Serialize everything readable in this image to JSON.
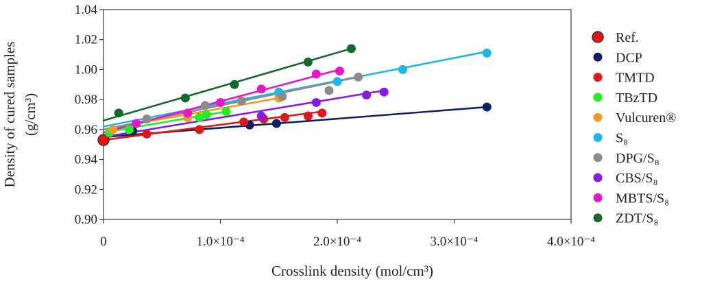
{
  "chart_data": {
    "type": "scatter",
    "title": "",
    "xlabel": "Crosslink density (mol/cm³)",
    "ylabel_line1": "Density of cured samples",
    "ylabel_line2": "(g/cm³)",
    "xlim": [
      0,
      0.0004
    ],
    "ylim": [
      0.9,
      1.04
    ],
    "x_ticks": [
      0,
      0.0001,
      0.0002,
      0.0003,
      0.0004
    ],
    "x_tick_labels": [
      "0",
      "1.0×10⁻⁴",
      "2.0×10⁻⁴",
      "3.0×10⁻⁴",
      "4.0×10⁻⁴"
    ],
    "y_ticks": [
      0.9,
      0.92,
      0.94,
      0.96,
      0.98,
      1.0,
      1.02,
      1.04
    ],
    "y_tick_labels": [
      "0.90",
      "0.92",
      "0.94",
      "0.96",
      "0.98",
      "1.00",
      "1.02",
      "1.04"
    ],
    "grid": false,
    "legend_position": "right",
    "series": [
      {
        "name": "Ref.",
        "color": "#ee1111",
        "x": [
          0
        ],
        "y": [
          0.953
        ],
        "fit": null
      },
      {
        "name": "DCP",
        "color": "#0d2266",
        "x": [
          2.5e-05,
          0.000125,
          0.000148,
          0.000175,
          0.000328
        ],
        "y": [
          0.959,
          0.963,
          0.964,
          0.969,
          0.975
        ],
        "fit": {
          "x": [
            0,
            0.000328
          ],
          "y": [
            0.955,
            0.975
          ]
        }
      },
      {
        "name": "TMTD",
        "color": "#e01818",
        "x": [
          3.7e-05,
          8.2e-05,
          0.00012,
          0.000137,
          0.000155,
          0.000175,
          0.000187
        ],
        "y": [
          0.957,
          0.96,
          0.965,
          0.967,
          0.968,
          0.969,
          0.971
        ],
        "fit": {
          "x": [
            0,
            0.000187
          ],
          "y": [
            0.953,
            0.972
          ]
        }
      },
      {
        "name": "TBzTD",
        "color": "#22ee22",
        "x": [
          5e-06,
          2.2e-05,
          8.2e-05,
          8.8e-05,
          0.000105
        ],
        "y": [
          0.958,
          0.96,
          0.968,
          0.97,
          0.972
        ],
        "fit": {
          "x": [
            0,
            0.000105
          ],
          "y": [
            0.958,
            0.972
          ]
        }
      },
      {
        "name": "Vulcuren®",
        "color": "#f59a1c",
        "x": [
          8e-06,
          7.2e-05,
          0.00015
        ],
        "y": [
          0.96,
          0.968,
          0.981
        ],
        "fit": {
          "x": [
            0,
            0.00015
          ],
          "y": [
            0.96,
            0.981
          ]
        }
      },
      {
        "name": "S₈",
        "color": "#19b7ea",
        "x": [
          0.00015,
          0.0002,
          0.000256,
          0.000328
        ],
        "y": [
          0.985,
          0.992,
          1.0,
          1.011
        ],
        "fit": {
          "x": [
            0,
            0.000328
          ],
          "y": [
            0.962,
            1.012
          ]
        }
      },
      {
        "name": "DPG/S₈",
        "color": "#8c8c8c",
        "x": [
          3.7e-05,
          8.7e-05,
          0.000118,
          0.000153,
          0.000193,
          0.000218
        ],
        "y": [
          0.967,
          0.976,
          0.979,
          0.982,
          0.986,
          0.995
        ],
        "fit": {
          "x": [
            0,
            0.000218
          ],
          "y": [
            0.96,
            0.995
          ]
        }
      },
      {
        "name": "CBS/S₈",
        "color": "#8a1be6",
        "x": [
          0.000135,
          0.000182,
          0.000225,
          0.00024
        ],
        "y": [
          0.969,
          0.978,
          0.983,
          0.985
        ],
        "fit": {
          "x": [
            0,
            0.00024
          ],
          "y": [
            0.955,
            0.986
          ]
        }
      },
      {
        "name": "MBTS/S₈",
        "color": "#ea15c9",
        "x": [
          2.8e-05,
          7.2e-05,
          0.0001,
          0.000135,
          0.000182,
          0.000202
        ],
        "y": [
          0.964,
          0.971,
          0.978,
          0.987,
          0.997,
          0.999
        ],
        "fit": {
          "x": [
            0,
            0.000202
          ],
          "y": [
            0.958,
            1.0
          ]
        }
      },
      {
        "name": "ZDT/S₈",
        "color": "#12692a",
        "x": [
          1.3e-05,
          7e-05,
          0.000112,
          0.000175,
          0.000212
        ],
        "y": [
          0.971,
          0.981,
          0.99,
          1.005,
          1.014
        ],
        "fit": {
          "x": [
            0,
            0.000212
          ],
          "y": [
            0.966,
            1.014
          ]
        }
      }
    ]
  }
}
